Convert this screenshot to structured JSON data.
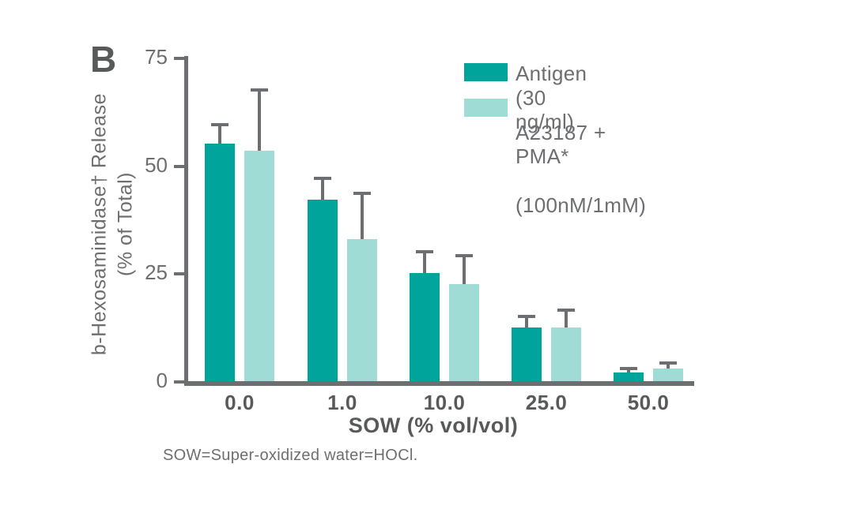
{
  "figure": {
    "panel_label": "B",
    "footnote": "SOW=Super-oxidized water=HOCl."
  },
  "colors": {
    "background": "#FFFFFF",
    "axis": "#6D6E71",
    "errorbar": "#6D6E71",
    "text_muted": "#6D6E71",
    "text_strong": "#58595B",
    "antigen_teal": "#00A49B",
    "a23187_teal": "#A0DCD6"
  },
  "chart_data": {
    "type": "bar",
    "title": "",
    "xlabel": "SOW (% vol/vol)",
    "ylabel_line1": "b-Hexosaminidase† Release",
    "ylabel_line2": "(% of Total)",
    "categories": [
      "0.0",
      "1.0",
      "10.0",
      "25.0",
      "50.0"
    ],
    "ylim": [
      0,
      75
    ],
    "yticks": [
      0,
      25,
      50,
      75
    ],
    "grid": false,
    "error_bars": true,
    "legend_position": "top-right",
    "series": [
      {
        "name": "Antigen (30 ng/ml)",
        "label_lines": [
          "Antigen (30 ng/ml)"
        ],
        "color": "#00A49B",
        "values": [
          55,
          42,
          25,
          12.5,
          2
        ],
        "errors": [
          4.5,
          5,
          5,
          2.5,
          1
        ]
      },
      {
        "name": "A23187 + PMA* (100nM/1mM)",
        "label_lines": [
          "A23187 + PMA*",
          "(100nM/1mM)"
        ],
        "color": "#A0DCD6",
        "values": [
          53.5,
          33,
          22.5,
          12.5,
          3
        ],
        "errors": [
          14,
          10.5,
          6.5,
          4,
          1.2
        ]
      }
    ]
  }
}
